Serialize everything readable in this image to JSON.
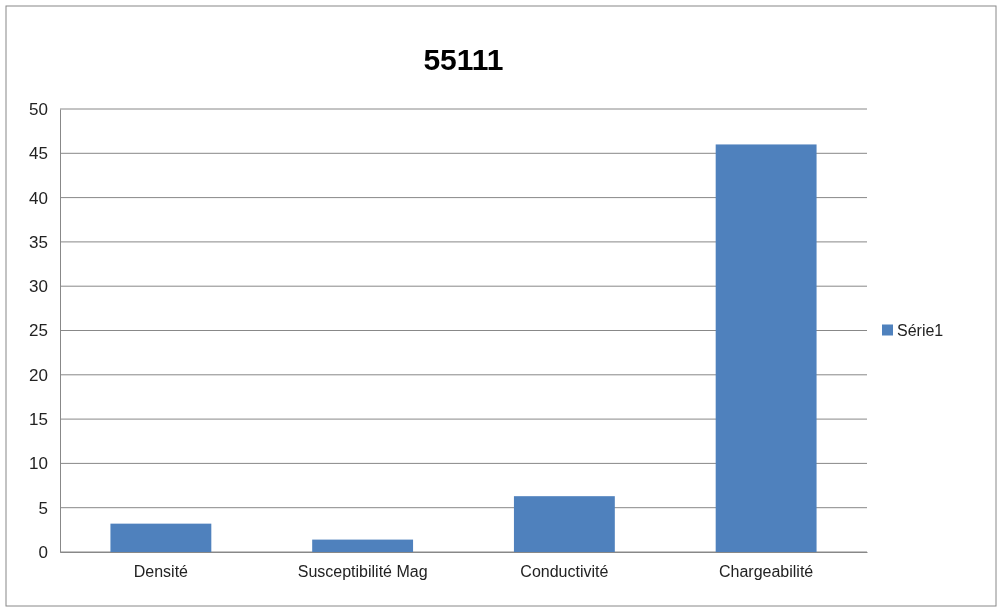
{
  "chart_data": {
    "type": "bar",
    "title": "55111",
    "categories": [
      "Densité",
      "Susceptibilité Mag",
      "Conductivité",
      "Chargeabilité"
    ],
    "series": [
      {
        "name": "Série1",
        "color": "#4f81bd",
        "values": [
          3.2,
          1.4,
          6.3,
          46
        ]
      }
    ],
    "ylim": [
      0,
      50
    ],
    "yticks": [
      0,
      5,
      10,
      15,
      20,
      25,
      30,
      35,
      40,
      45,
      50
    ],
    "grid": "y",
    "legend": "right"
  }
}
